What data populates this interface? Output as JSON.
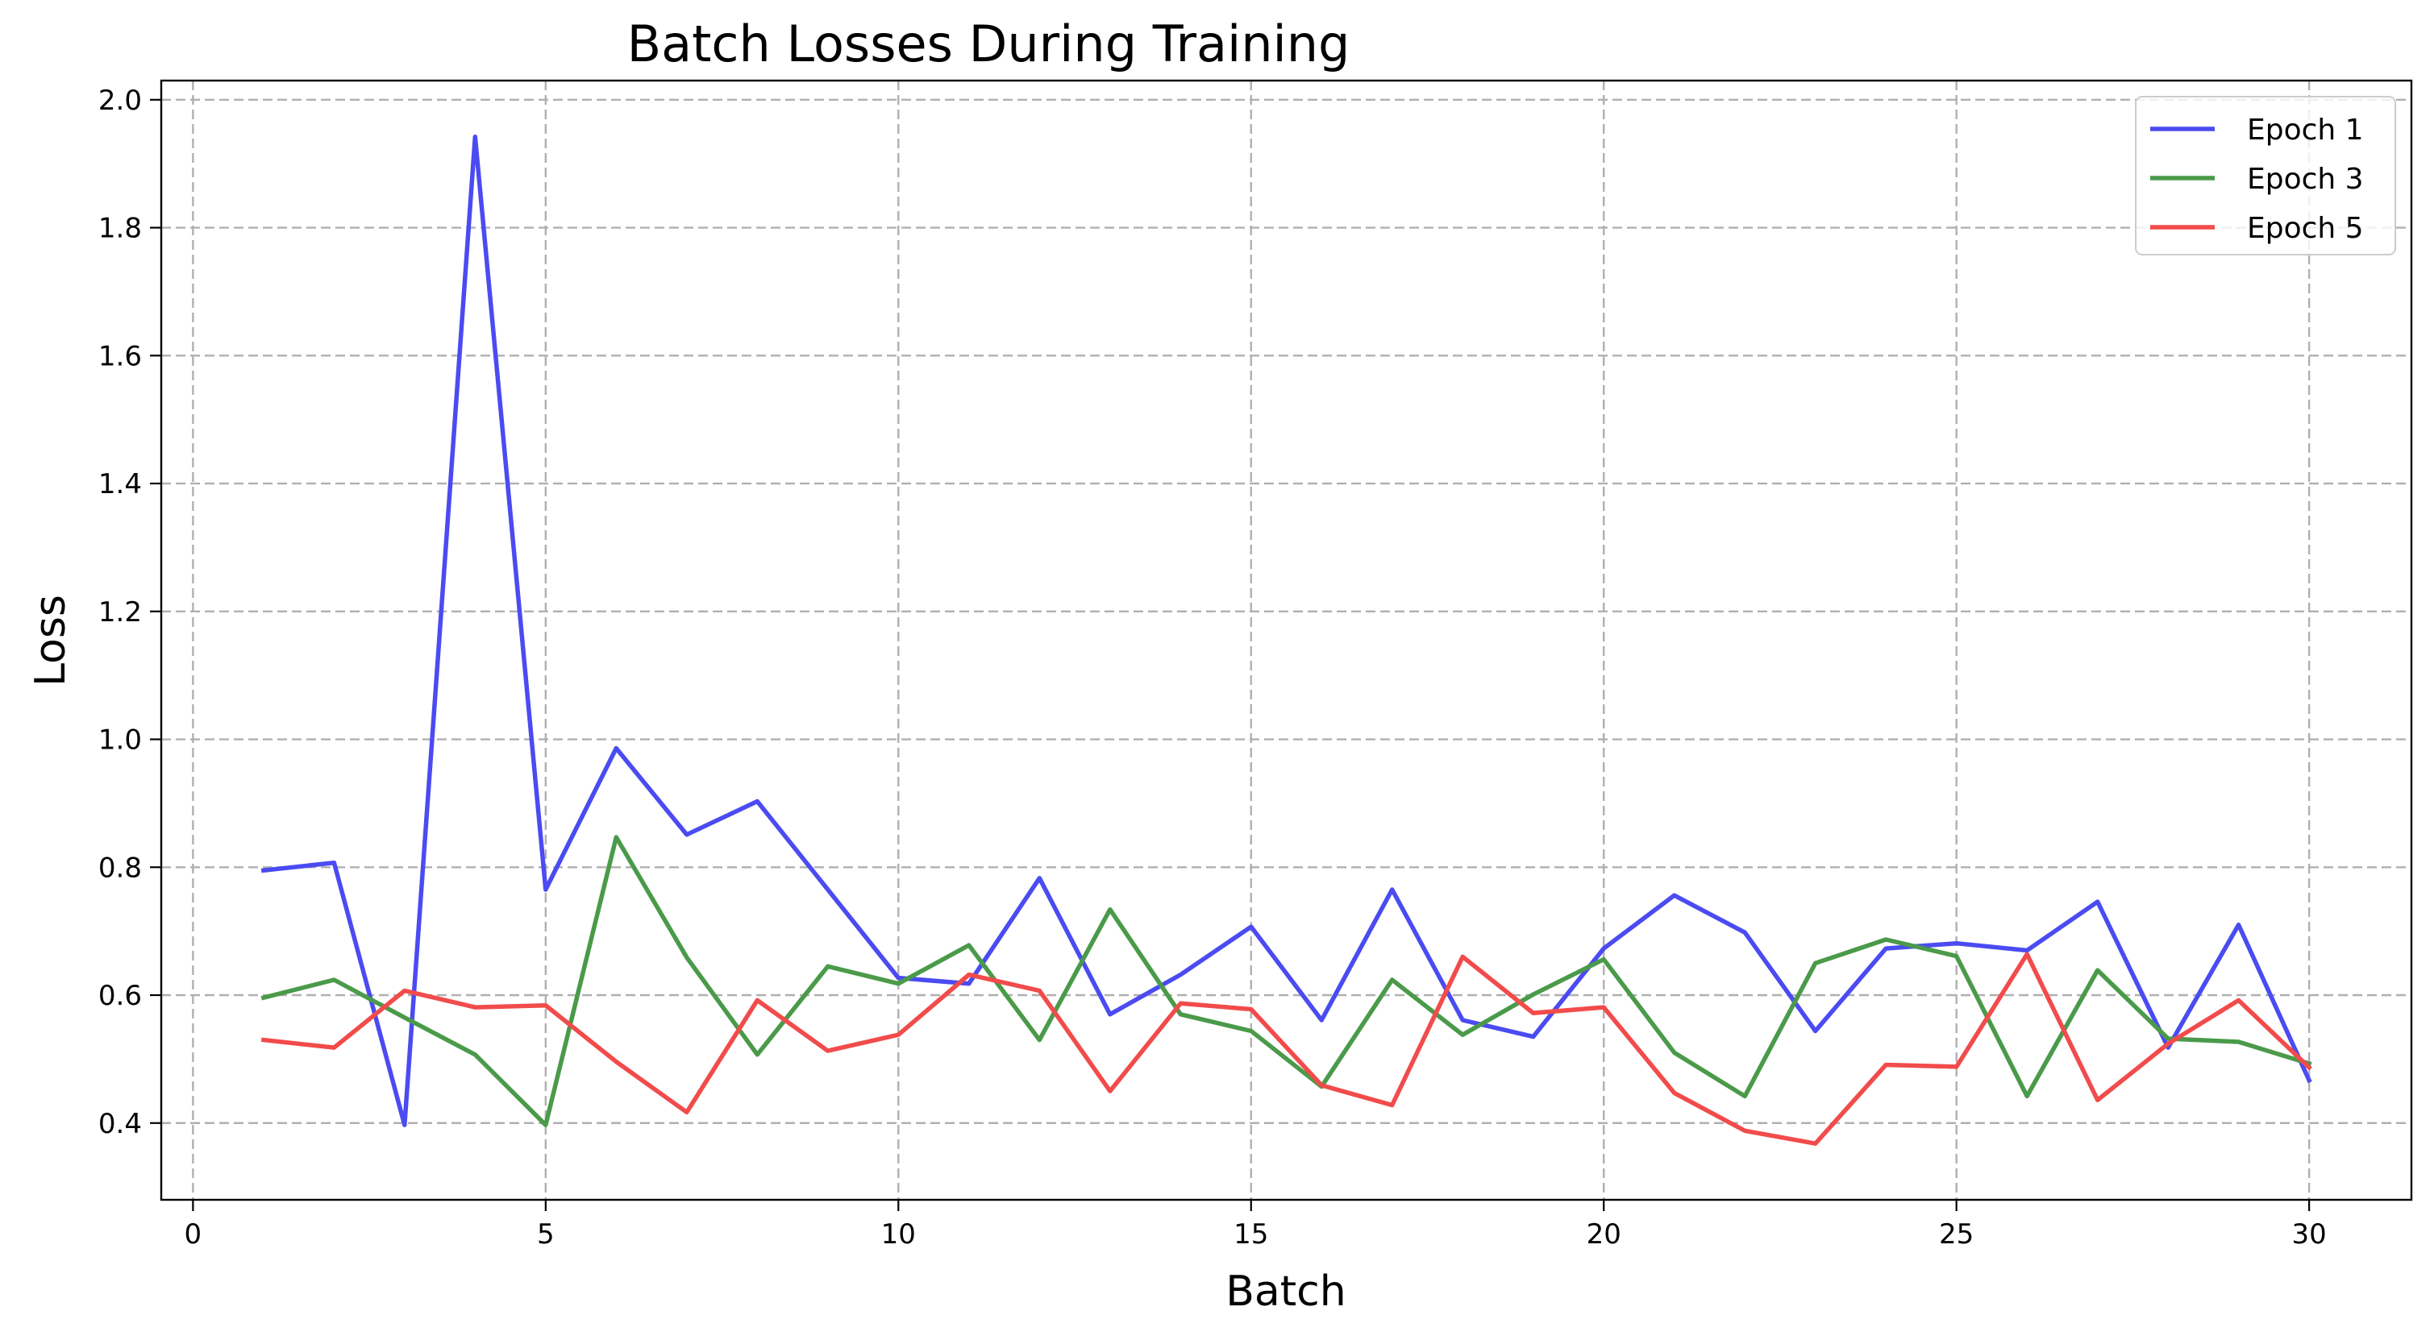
{
  "chart_data": {
    "type": "line",
    "title": "Batch Losses During Training",
    "xlabel": "Batch",
    "ylabel": "Loss",
    "xlim": [
      -0.45,
      31.45
    ],
    "ylim": [
      0.28,
      2.03
    ],
    "x_ticks": [
      0,
      5,
      10,
      15,
      20,
      25,
      30
    ],
    "x_tick_labels": [
      "0",
      "5",
      "10",
      "15",
      "20",
      "25",
      "30"
    ],
    "y_ticks": [
      0.4,
      0.6,
      0.8,
      1.0,
      1.2,
      1.4,
      1.6,
      1.8,
      2.0
    ],
    "y_tick_labels": [
      "0.4",
      "0.6",
      "0.8",
      "1.0",
      "1.2",
      "1.4",
      "1.6",
      "1.8",
      "2.0"
    ],
    "grid": true,
    "legend_position": "top-right",
    "x": [
      1,
      2,
      3,
      4,
      5,
      6,
      7,
      8,
      9,
      10,
      11,
      12,
      13,
      14,
      15,
      16,
      17,
      18,
      19,
      20,
      21,
      22,
      23,
      24,
      25,
      26,
      27,
      28,
      29,
      30
    ],
    "series": [
      {
        "name": "Epoch 1",
        "color": "#4b4bf2",
        "values": [
          0.795,
          0.807,
          0.397,
          1.942,
          0.765,
          0.986,
          0.851,
          0.903,
          0.765,
          0.627,
          0.618,
          0.783,
          0.57,
          0.632,
          0.707,
          0.561,
          0.765,
          0.561,
          0.535,
          0.673,
          0.756,
          0.698,
          0.544,
          0.673,
          0.681,
          0.67,
          0.746,
          0.518,
          0.71,
          0.467
        ]
      },
      {
        "name": "Epoch 3",
        "color": "#4a9a4a",
        "values": [
          0.596,
          0.624,
          0.565,
          0.507,
          0.397,
          0.847,
          0.659,
          0.507,
          0.645,
          0.618,
          0.678,
          0.53,
          0.734,
          0.57,
          0.544,
          0.457,
          0.624,
          0.538,
          0.601,
          0.656,
          0.51,
          0.442,
          0.65,
          0.687,
          0.661,
          0.442,
          0.639,
          0.532,
          0.527,
          0.493
        ]
      },
      {
        "name": "Epoch 5",
        "color": "#f24b4b",
        "values": [
          0.53,
          0.518,
          0.607,
          0.581,
          0.584,
          0.496,
          0.417,
          0.592,
          0.513,
          0.538,
          0.632,
          0.607,
          0.45,
          0.587,
          0.578,
          0.459,
          0.428,
          0.66,
          0.572,
          0.581,
          0.447,
          0.388,
          0.368,
          0.491,
          0.488,
          0.664,
          0.436,
          0.524,
          0.592,
          0.487
        ]
      }
    ]
  }
}
